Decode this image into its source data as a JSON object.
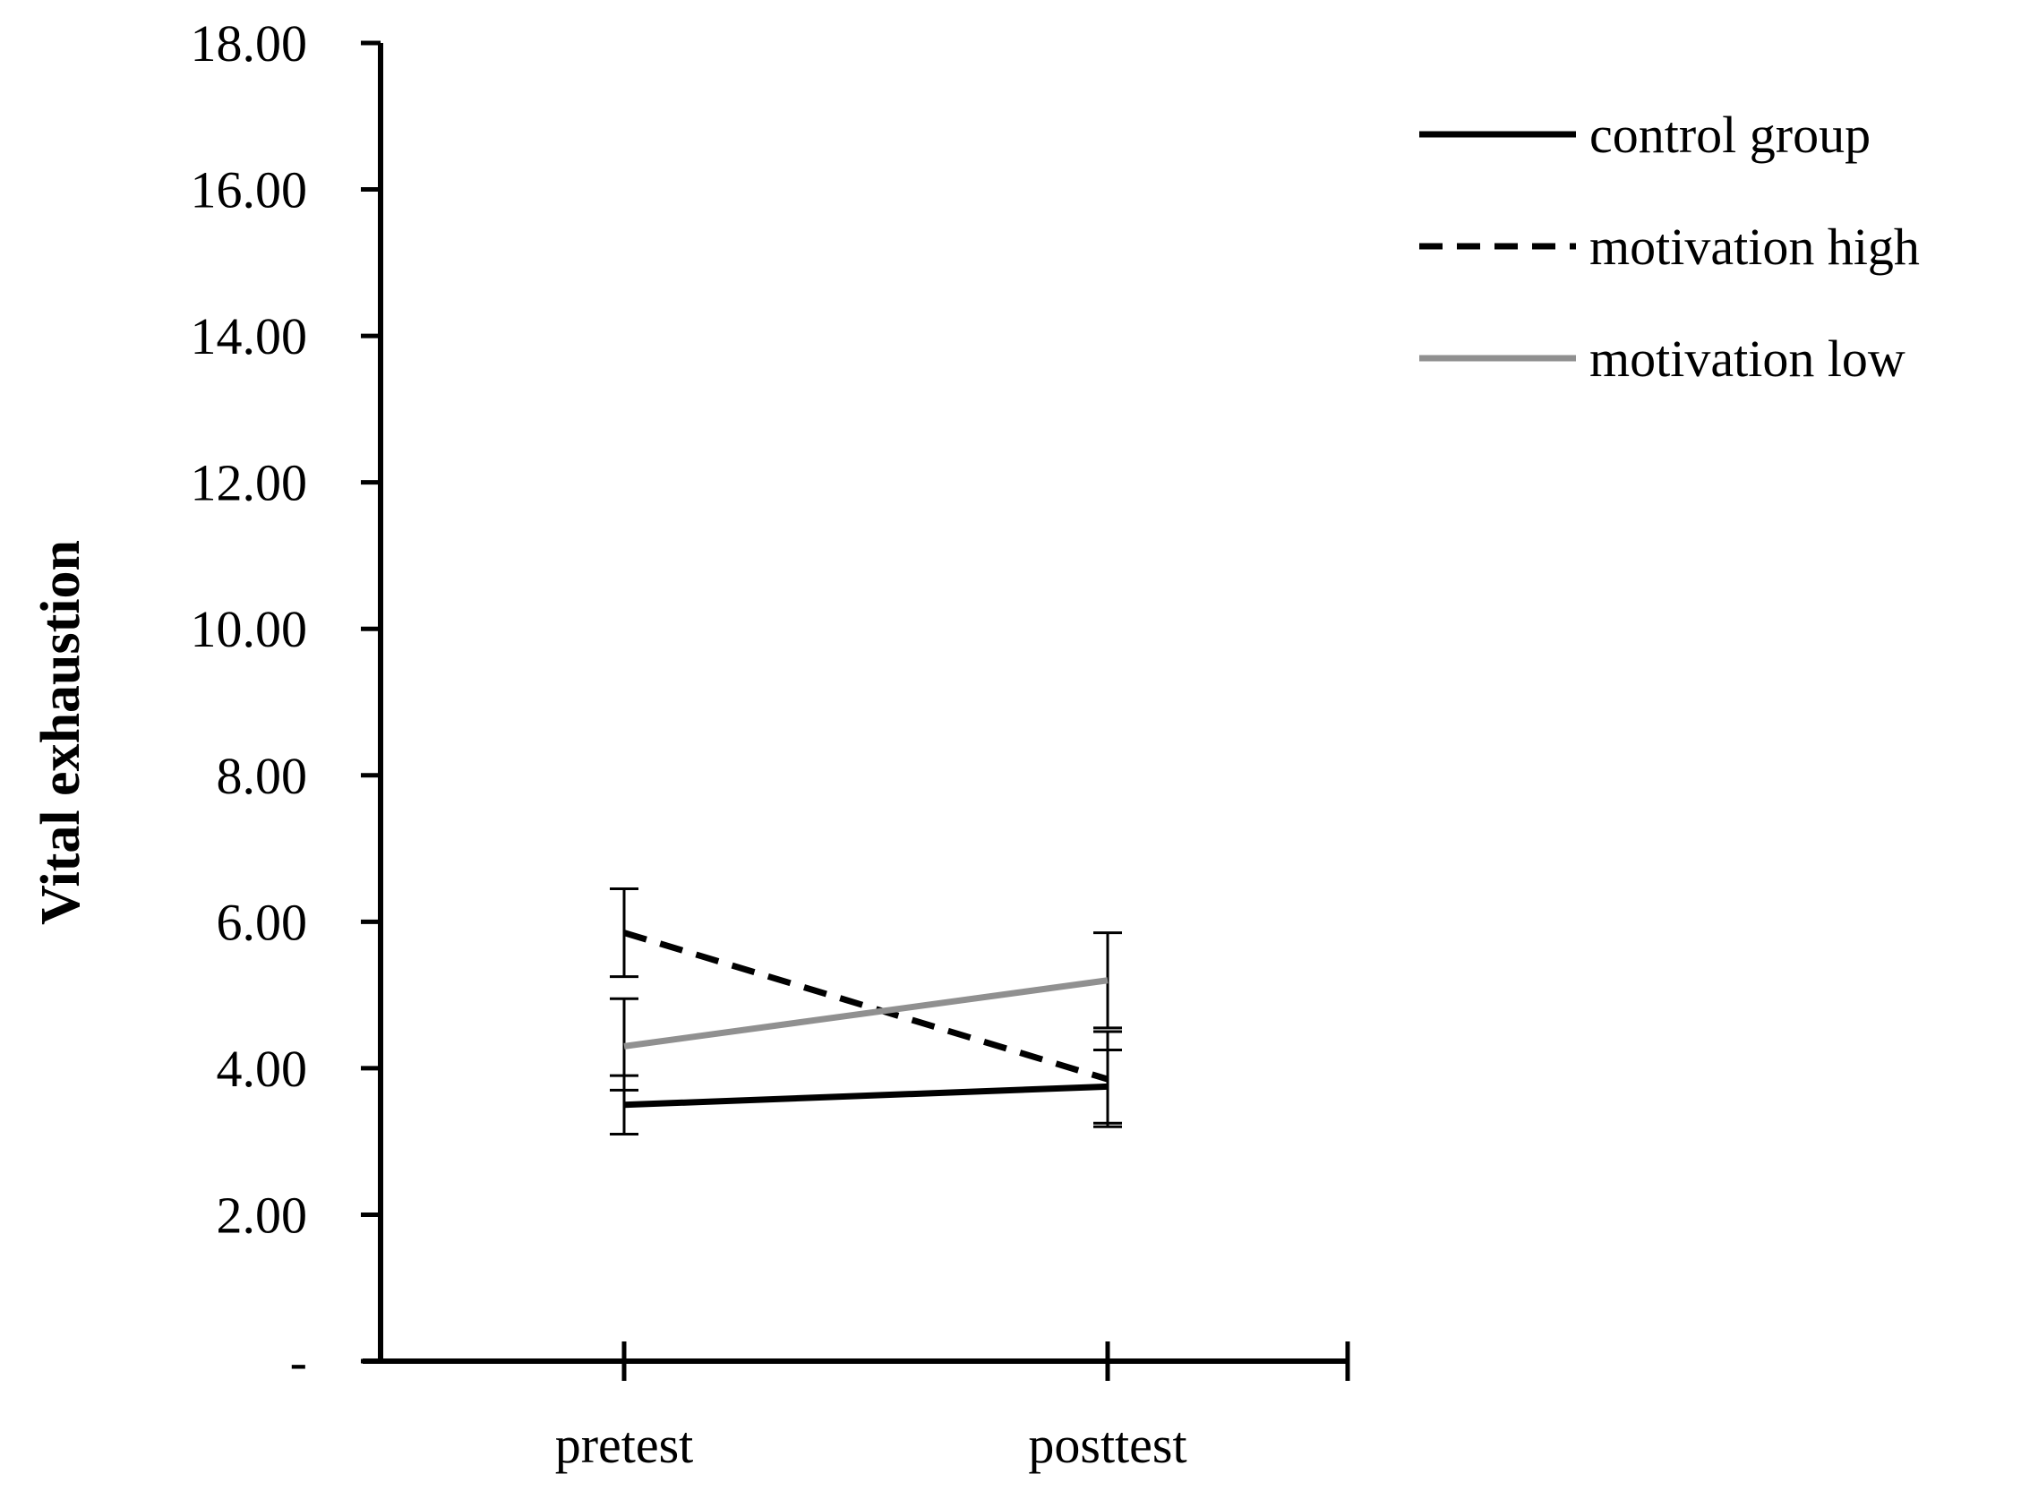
{
  "chart_data": {
    "type": "line",
    "ylabel": "Vital exhaustion",
    "xlabel": "",
    "categories": [
      "pretest",
      "posttest"
    ],
    "ylim": [
      0,
      18
    ],
    "yticks": [
      0,
      2,
      4,
      6,
      8,
      10,
      12,
      14,
      16,
      18
    ],
    "ytick_labels": [
      "-",
      "2.00",
      "4.00",
      "6.00",
      "8.00",
      "10.00",
      "12.00",
      "14.00",
      "16.00",
      "18.00"
    ],
    "grid": false,
    "legend_position": "top-right",
    "series": [
      {
        "name": "control group",
        "values": [
          3.5,
          3.75
        ],
        "error_low": [
          3.1,
          3.2
        ],
        "error_high": [
          3.9,
          4.25
        ],
        "color": "#000000",
        "style": "solid"
      },
      {
        "name": "motivation high",
        "values": [
          5.85,
          3.85
        ],
        "error_low": [
          5.25,
          3.25
        ],
        "error_high": [
          6.45,
          4.5
        ],
        "color": "#000000",
        "style": "dashed"
      },
      {
        "name": "motivation low",
        "values": [
          4.3,
          5.2
        ],
        "error_low": [
          3.7,
          4.55
        ],
        "error_high": [
          4.95,
          5.85
        ],
        "color": "#909090",
        "style": "solid"
      }
    ]
  }
}
